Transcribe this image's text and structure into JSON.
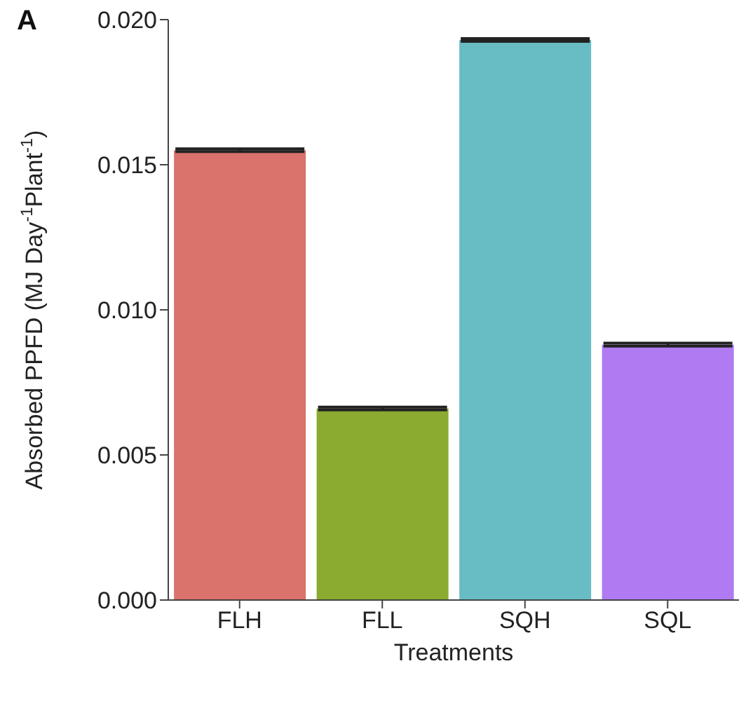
{
  "chart_data": {
    "type": "bar",
    "ylabel": "Absorbed PPFD (MJ Day$^{-1}$Plant$^{-1}$)",
    "xlabel": "Treatments",
    "annotations": [
      "A"
    ],
    "categories": [
      "FLH",
      "FLL",
      "SQH",
      "SQL"
    ],
    "values": [
      0.0155,
      0.0066,
      0.0193,
      0.0088
    ],
    "errors": [
      5e-05,
      5e-05,
      5e-05,
      5e-05
    ],
    "colors": [
      "#d9736b",
      "#8aab2f",
      "#68bcc4",
      "#b07af2"
    ],
    "ylim": [
      0,
      0.02
    ],
    "yticks": [
      {
        "value": 0,
        "label": "0.000"
      },
      0.005,
      {
        "value": 0.01,
        "label": "0.010"
      },
      0.015,
      {
        "value": 0.02,
        "label": "0.020"
      }
    ],
    "grid": false,
    "legend": false
  }
}
